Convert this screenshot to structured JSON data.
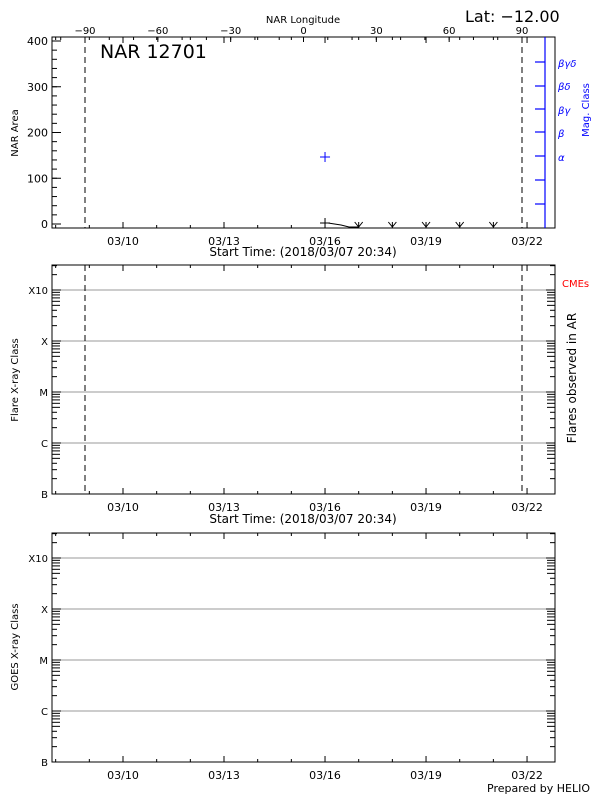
{
  "header": {
    "lat_label": "Lat: −12.00",
    "top_axis_title": "NAR Longitude",
    "top_axis_ticks": [
      "−90",
      "−60",
      "−30",
      "0",
      "30",
      "60",
      "90"
    ]
  },
  "panel1": {
    "region_label": "NAR 12701",
    "ylabel": "NAR Area",
    "yticks": [
      "0",
      "100",
      "200",
      "300",
      "400"
    ],
    "right_axis_title": "Mag. Class",
    "mag_classes": [
      "α",
      "β",
      "βγ",
      "βδ",
      "βγδ"
    ],
    "xlabel": "Start Time: (2018/03/07 20:34)"
  },
  "panel2": {
    "ylabel": "Flare X-ray Class",
    "yticks": [
      "B",
      "C",
      "M",
      "X",
      "X10"
    ],
    "right_label": "Flares observed in AR",
    "cme_label": "CMEs",
    "xlabel": "Start Time: (2018/03/07 20:34)"
  },
  "panel3": {
    "ylabel": "GOES X-ray Class",
    "yticks": [
      "B",
      "C",
      "M",
      "X",
      "X10"
    ]
  },
  "date_ticks": [
    "03/10",
    "03/13",
    "03/16",
    "03/19",
    "03/22"
  ],
  "footer": {
    "credit": "Prepared by HELIO"
  },
  "colors": {
    "mag_axis": "#0000ff",
    "cme": "#ff0000",
    "grid": "#999999",
    "axis": "#000000"
  },
  "chart_data": [
    {
      "type": "scatter",
      "title": "NAR 12701",
      "xlabel": "Start Time: (2018/03/07 20:34)",
      "ylabel": "NAR Area",
      "ylim": [
        0,
        400
      ],
      "x_top_label": "NAR Longitude",
      "x_top_ticks": [
        -90,
        -60,
        -30,
        0,
        30,
        60,
        90
      ],
      "x_ticks": [
        "03/10",
        "03/13",
        "03/16",
        "03/19",
        "03/22"
      ],
      "series": [
        {
          "name": "NAR Area",
          "x": [
            "03/16",
            "03/17",
            "03/18",
            "03/19",
            "03/20",
            "03/21"
          ],
          "values": [
            3,
            0,
            0,
            0,
            0,
            0
          ]
        },
        {
          "name": "Mag. Class",
          "x": [
            "03/16"
          ],
          "values": [
            "α"
          ]
        }
      ],
      "vlines": [
        "03/08 (lon -90)",
        "03/21 (lon 90)"
      ],
      "annotation": "Lat: -12.00"
    },
    {
      "type": "scatter",
      "xlabel": "Start Time: (2018/03/07 20:34)",
      "ylabel": "Flare X-ray Class",
      "y_ticks": [
        "B",
        "C",
        "M",
        "X",
        "X10"
      ],
      "x_ticks": [
        "03/10",
        "03/13",
        "03/16",
        "03/19",
        "03/22"
      ],
      "right_label": "Flares observed in AR",
      "legend": [
        "CMEs"
      ],
      "series": [],
      "grid": true
    },
    {
      "type": "line",
      "ylabel": "GOES X-ray Class",
      "y_ticks": [
        "B",
        "C",
        "M",
        "X",
        "X10"
      ],
      "x_ticks": [
        "03/10",
        "03/13",
        "03/16",
        "03/19",
        "03/22"
      ],
      "series": [],
      "grid": true
    }
  ]
}
